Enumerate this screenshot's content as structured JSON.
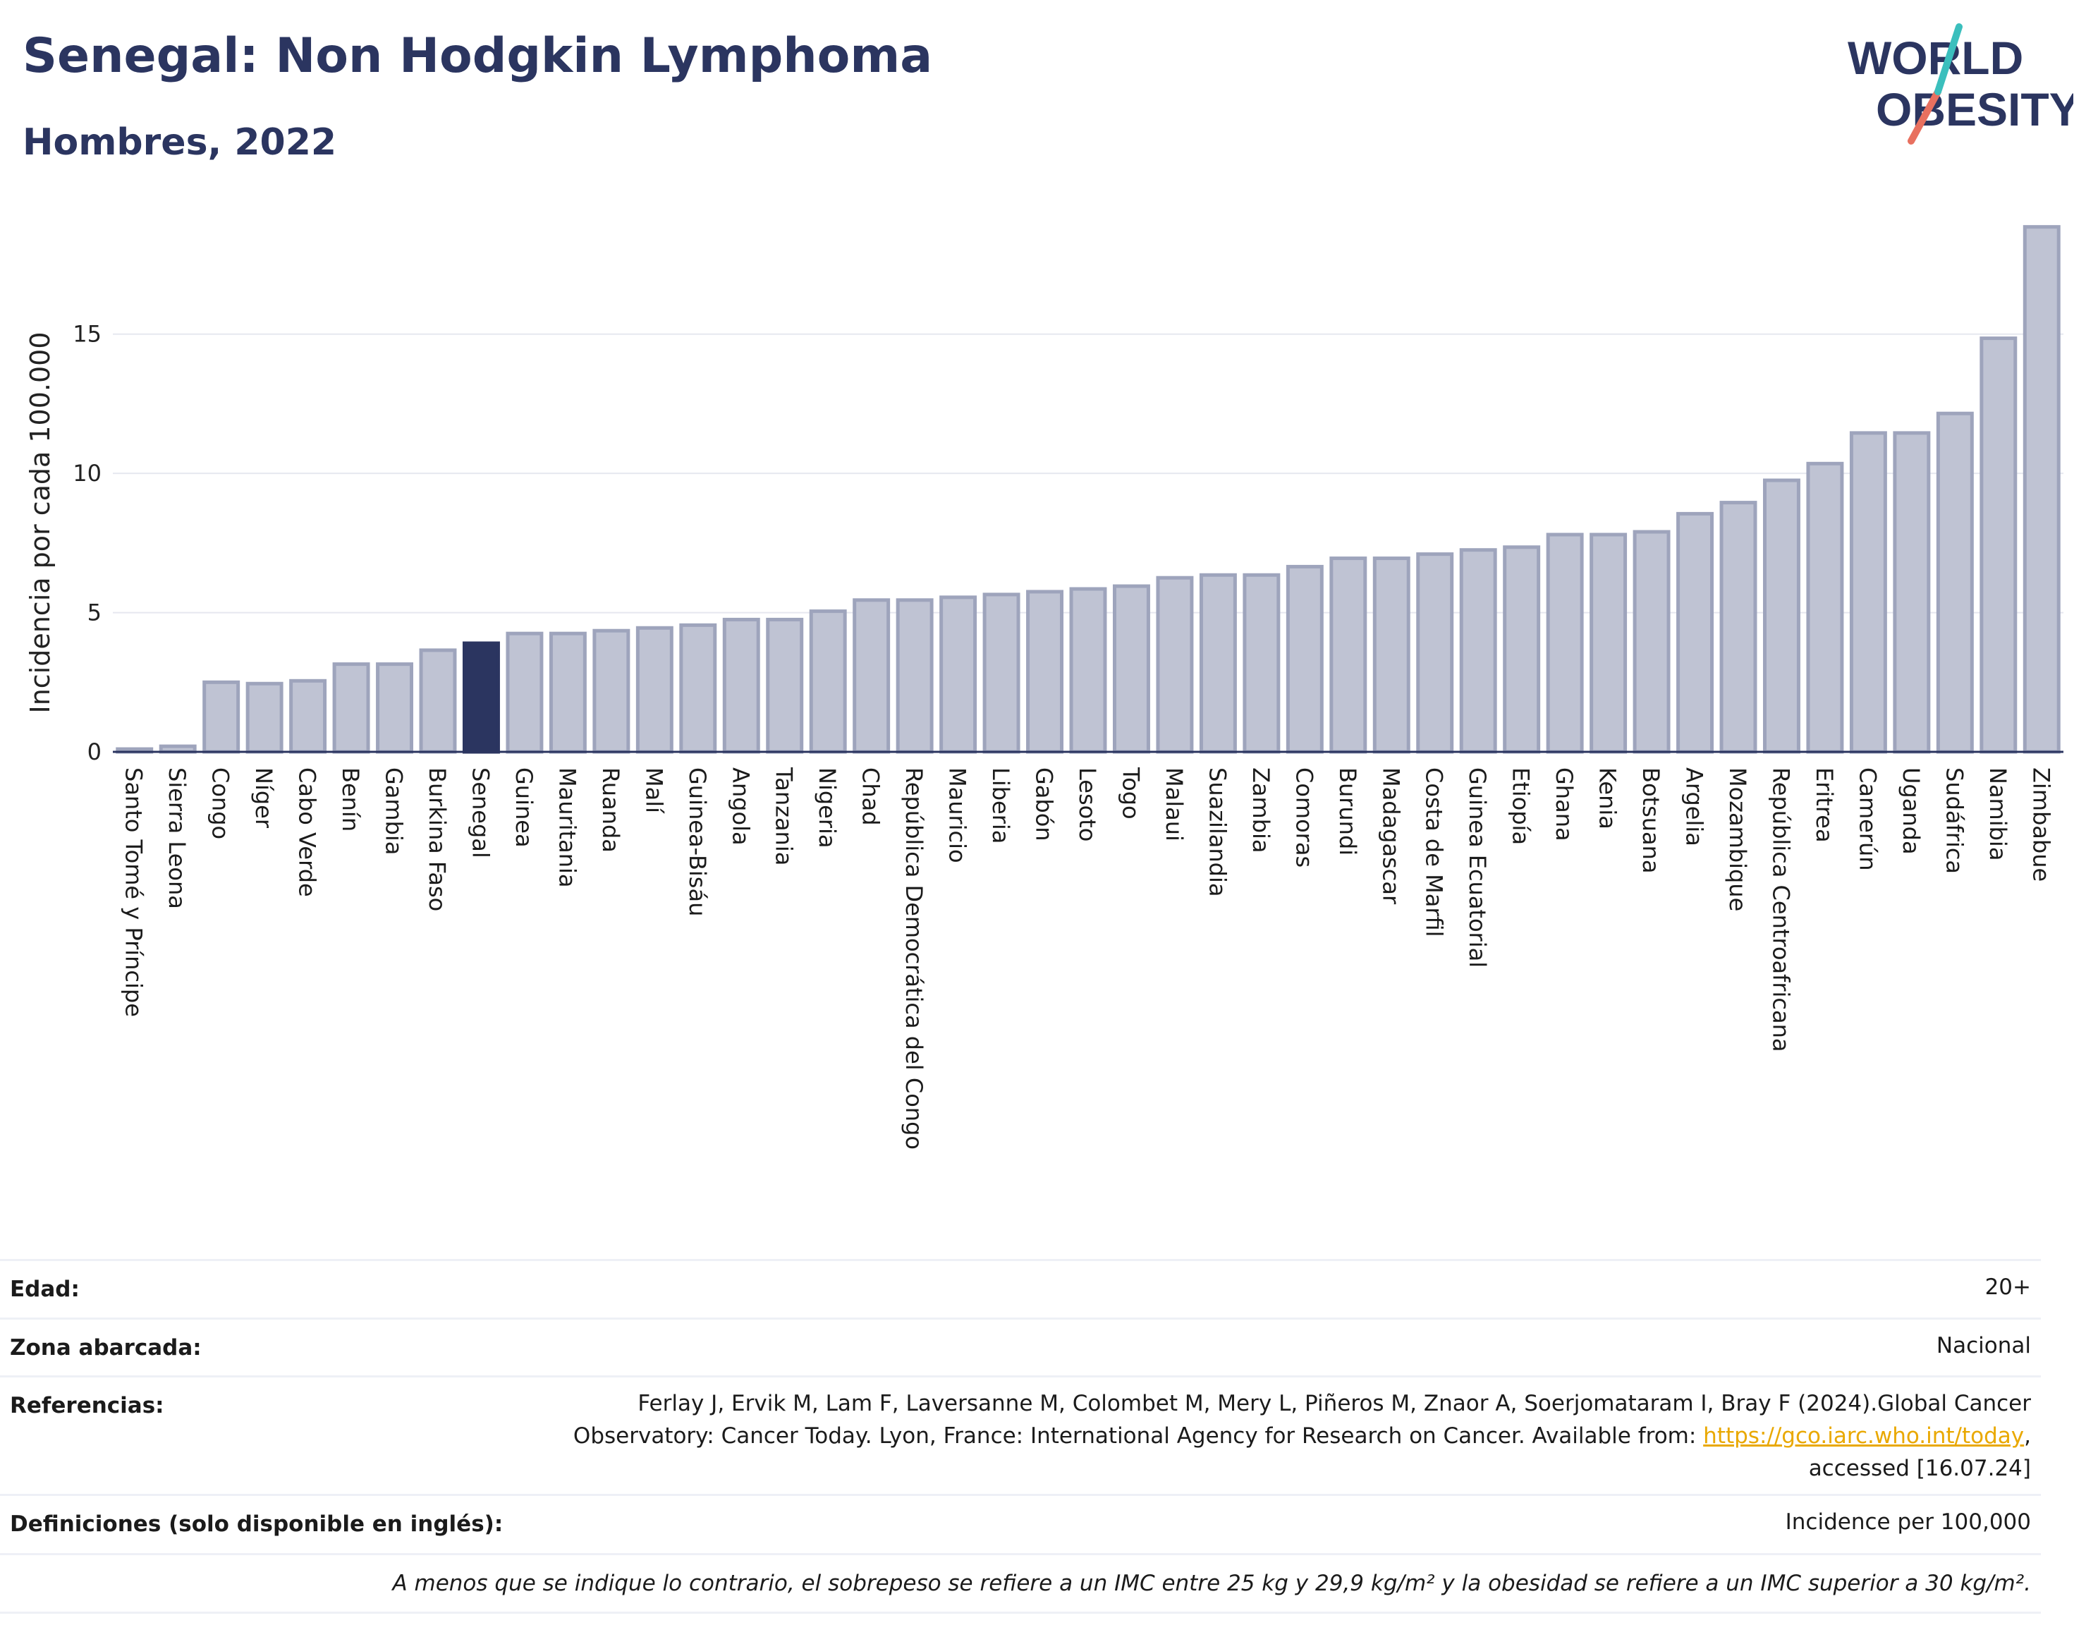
{
  "header": {
    "title": "Senegal: Non Hodgkin Lymphoma",
    "subtitle": "Hombres, 2022"
  },
  "logo": {
    "line1": "WORLD",
    "line2": "OBESITY",
    "slash_colors": [
      "#3bbfbd",
      "#e8705f"
    ],
    "text_color": "#2b3560"
  },
  "colors": {
    "highlight": "#2b3560",
    "bar": "#bfc3d3",
    "bar_stroke": "#9ea4bc",
    "grid": "#e6e8ef"
  },
  "chart_data": {
    "type": "bar",
    "ylabel": "Incidencia por cada 100.000",
    "xlabel": "",
    "ylim": [
      0,
      19.5
    ],
    "yticks": [
      0,
      5,
      10,
      15
    ],
    "grid": true,
    "highlight": "Senegal",
    "categories": [
      "Santo Tomé y Príncipe",
      "Sierra Leona",
      "Congo",
      "Níger",
      "Cabo Verde",
      "Benín",
      "Gambia",
      "Burkina Faso",
      "Senegal",
      "Guinea",
      "Mauritania",
      "Ruanda",
      "Malí",
      "Guinea-Bisáu",
      "Angola",
      "Tanzania",
      "Nigeria",
      "Chad",
      "República Democrática del Congo",
      "Mauricio",
      "Liberia",
      "Gabón",
      "Lesoto",
      "Togo",
      "Malaui",
      "Suazilandia",
      "Zambia",
      "Comoras",
      "Burundi",
      "Madagascar",
      "Costa de Marfil",
      "Guinea Ecuatorial",
      "Etiopía",
      "Ghana",
      "Kenia",
      "Botsuana",
      "Argelia",
      "Mozambique",
      "República Centroafricana",
      "Eritrea",
      "Camerún",
      "Uganda",
      "Sudáfrica",
      "Namibia",
      "Zimbabue"
    ],
    "values": [
      0.1,
      0.2,
      2.5,
      2.45,
      2.55,
      3.15,
      3.15,
      3.65,
      3.9,
      4.25,
      4.25,
      4.35,
      4.45,
      4.55,
      4.75,
      4.75,
      5.05,
      5.45,
      5.45,
      5.55,
      5.65,
      5.75,
      5.85,
      5.95,
      6.25,
      6.35,
      6.35,
      6.65,
      6.95,
      6.95,
      7.1,
      7.25,
      7.35,
      7.8,
      7.8,
      7.9,
      8.55,
      8.95,
      9.75,
      10.35,
      11.45,
      11.45,
      12.15,
      14.85,
      18.85
    ]
  },
  "meta": {
    "age_label": "Edad:",
    "age_value": "20+",
    "area_label": "Zona abarcada:",
    "area_value": "Nacional",
    "ref_label": "Referencias:",
    "ref_line1": "Ferlay J, Ervik M, Lam F, Laversanne M, Colombet M, Mery L, Piñeros M, Znaor A, Soerjomataram I, Bray F (2024).Global Cancer",
    "ref_line2_prefix": "Observatory: Cancer Today. Lyon, France: International Agency for Research on Cancer. Available from: ",
    "ref_link": "https://gco.iarc.who.int/today",
    "ref_line2_suffix": ",",
    "ref_line3": "accessed [16.07.24]",
    "def_label": "Definiciones (solo disponible en inglés):",
    "def_value": "Incidence per 100,000",
    "footnote": "A menos que se indique lo contrario, el sobrepeso se refiere a un IMC entre 25 kg y 29,9 kg/m² y la obesidad se refiere a un IMC superior a 30 kg/m²."
  }
}
